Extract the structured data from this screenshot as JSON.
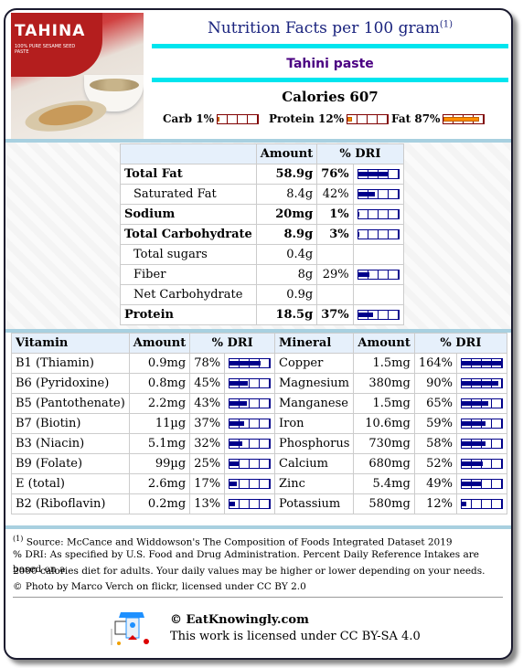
{
  "header": {
    "title": "Nutrition Facts per 100 gram",
    "title_sup": "(1)",
    "food_name": "Tahini paste",
    "calories": "Calories 607",
    "photo_label": "TAHINA",
    "photo_sub": "100% PURE SESAME SEED PASTE",
    "macros": [
      {
        "label": "Carb 1%",
        "percent": 1
      },
      {
        "label": "Protein 12%",
        "percent": 12
      },
      {
        "label": "Fat 87%",
        "percent": 87
      }
    ]
  },
  "nutrients": {
    "headers": [
      "",
      "Amount",
      "% DRI"
    ],
    "rows": [
      {
        "name": "Total Fat",
        "amount": "58.9g",
        "dri": "76%",
        "dri_value": 76,
        "bold": true,
        "indent": false
      },
      {
        "name": "Saturated Fat",
        "amount": "8.4g",
        "dri": "42%",
        "dri_value": 42,
        "bold": false,
        "indent": true
      },
      {
        "name": "Sodium",
        "amount": "20mg",
        "dri": "1%",
        "dri_value": 1,
        "bold": true,
        "indent": false
      },
      {
        "name": "Total Carbohydrate",
        "amount": "8.9g",
        "dri": "3%",
        "dri_value": 3,
        "bold": true,
        "indent": false
      },
      {
        "name": "Total sugars",
        "amount": "0.4g",
        "dri": "",
        "dri_value": null,
        "bold": false,
        "indent": true
      },
      {
        "name": "Fiber",
        "amount": "8g",
        "dri": "29%",
        "dri_value": 29,
        "bold": false,
        "indent": true
      },
      {
        "name": "Net Carbohydrate",
        "amount": "0.9g",
        "dri": "",
        "dri_value": null,
        "bold": false,
        "indent": true
      },
      {
        "name": "Protein",
        "amount": "18.5g",
        "dri": "37%",
        "dri_value": 37,
        "bold": true,
        "indent": false
      }
    ]
  },
  "vitamins": {
    "headers": [
      "Vitamin",
      "Amount",
      "% DRI"
    ],
    "rows": [
      {
        "name": "B1 (Thiamin)",
        "amount": "0.9mg",
        "dri": "78%",
        "dri_value": 78
      },
      {
        "name": "B6 (Pyridoxine)",
        "amount": "0.8mg",
        "dri": "45%",
        "dri_value": 45
      },
      {
        "name": "B5 (Pantothenate)",
        "amount": "2.2mg",
        "dri": "43%",
        "dri_value": 43
      },
      {
        "name": "B7 (Biotin)",
        "amount": "11µg",
        "dri": "37%",
        "dri_value": 37
      },
      {
        "name": "B3 (Niacin)",
        "amount": "5.1mg",
        "dri": "32%",
        "dri_value": 32
      },
      {
        "name": "B9 (Folate)",
        "amount": "99µg",
        "dri": "25%",
        "dri_value": 25
      },
      {
        "name": "E (total)",
        "amount": "2.6mg",
        "dri": "17%",
        "dri_value": 17
      },
      {
        "name": "B2 (Riboflavin)",
        "amount": "0.2mg",
        "dri": "13%",
        "dri_value": 13
      }
    ]
  },
  "minerals": {
    "headers": [
      "Mineral",
      "Amount",
      "% DRI"
    ],
    "rows": [
      {
        "name": "Copper",
        "amount": "1.5mg",
        "dri": "164%",
        "dri_value": 164
      },
      {
        "name": "Magnesium",
        "amount": "380mg",
        "dri": "90%",
        "dri_value": 90
      },
      {
        "name": "Manganese",
        "amount": "1.5mg",
        "dri": "65%",
        "dri_value": 65
      },
      {
        "name": "Iron",
        "amount": "10.6mg",
        "dri": "59%",
        "dri_value": 59
      },
      {
        "name": "Phosphorus",
        "amount": "730mg",
        "dri": "58%",
        "dri_value": 58
      },
      {
        "name": "Calcium",
        "amount": "680mg",
        "dri": "52%",
        "dri_value": 52
      },
      {
        "name": "Zinc",
        "amount": "5.4mg",
        "dri": "49%",
        "dri_value": 49
      },
      {
        "name": "Potassium",
        "amount": "580mg",
        "dri": "12%",
        "dri_value": 12
      }
    ]
  },
  "footer": {
    "source_sup": "(1)",
    "source": "Source: McCance and Widdowson's The Composition of Foods Integrated Dataset 2019",
    "dri_note_1": "% DRI: As specified by U.S. Food and Drug Administration. Percent Daily Reference Intakes are based on a",
    "dri_note_2": "2000 calories diet for adults. Your daily values may be higher or lower depending on your needs.",
    "photo_credit": "© Photo by Marco Verch on flickr, licensed under CC BY 2.0",
    "site": "© EatKnowingly.com",
    "license": "This work is licensed under CC BY-SA 4.0"
  },
  "colors": {
    "title": "#1a237e",
    "food": "#4b0082",
    "cyan": "#00e5ee",
    "macro_fill": "#ff8c00",
    "dri_bar": "#00008b"
  }
}
